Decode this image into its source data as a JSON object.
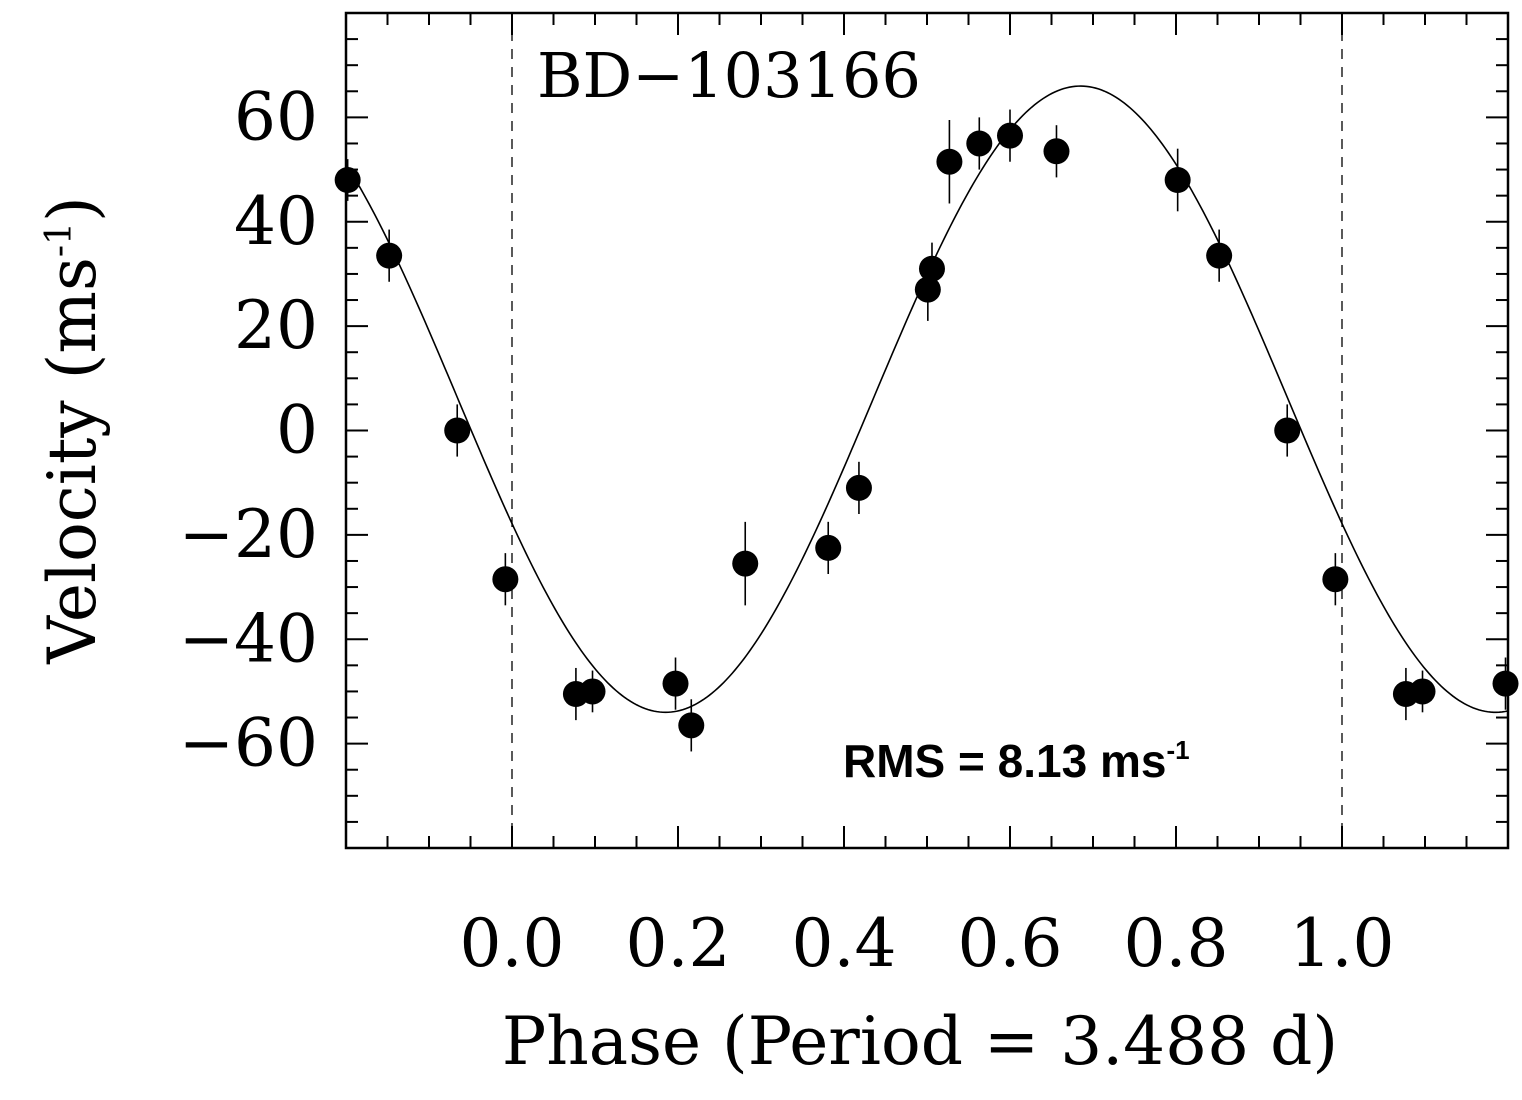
{
  "chart_data": {
    "type": "scatter",
    "title": "BD−103166",
    "xlabel": "Phase (Period = 3.488 d)",
    "ylabel_main": "Velocity (ms",
    "ylabel_sup": "-1",
    "ylabel_close": ")",
    "annotation_main": "RMS = 8.13 ms",
    "annotation_sup": "-1",
    "xlim": [
      -0.2,
      1.2
    ],
    "ylim": [
      -80,
      80
    ],
    "xticks": [
      {
        "value": 0.0,
        "label": "0.0"
      },
      {
        "value": 0.2,
        "label": "0.2"
      },
      {
        "value": 0.4,
        "label": "0.4"
      },
      {
        "value": 0.6,
        "label": "0.6"
      },
      {
        "value": 0.8,
        "label": "0.8"
      },
      {
        "value": 1.0,
        "label": "1.0"
      }
    ],
    "yticks": [
      {
        "value": 60,
        "label": "60"
      },
      {
        "value": 40,
        "label": "40"
      },
      {
        "value": 20,
        "label": "20"
      },
      {
        "value": 0,
        "label": "0"
      },
      {
        "value": -20,
        "label": "−20"
      },
      {
        "value": -40,
        "label": "−40"
      },
      {
        "value": -60,
        "label": "−60"
      }
    ],
    "x_minor_step": 0.05,
    "y_minor_step": 5,
    "dashed_lines_x": [
      0.0,
      1.0
    ],
    "fit_model": {
      "type": "sine",
      "amplitude": 60,
      "offset": 6,
      "period_phase": 1.0,
      "phase_shift": 0.435
    },
    "points": [
      {
        "x": -0.198,
        "y": 48,
        "err": 4
      },
      {
        "x": -0.148,
        "y": 33.5,
        "err": 5
      },
      {
        "x": -0.066,
        "y": 0,
        "err": 5
      },
      {
        "x": -0.008,
        "y": -28.5,
        "err": 5
      },
      {
        "x": 0.077,
        "y": -50.5,
        "err": 5
      },
      {
        "x": 0.097,
        "y": -50,
        "err": 4
      },
      {
        "x": 0.197,
        "y": -48.5,
        "err": 5
      },
      {
        "x": 0.216,
        "y": -56.5,
        "err": 5
      },
      {
        "x": 0.281,
        "y": -25.5,
        "err": 8
      },
      {
        "x": 0.381,
        "y": -22.5,
        "err": 5
      },
      {
        "x": 0.418,
        "y": -11,
        "err": 5
      },
      {
        "x": 0.501,
        "y": 27,
        "err": 6
      },
      {
        "x": 0.506,
        "y": 31,
        "err": 5
      },
      {
        "x": 0.527,
        "y": 51.5,
        "err": 8
      },
      {
        "x": 0.563,
        "y": 55,
        "err": 5
      },
      {
        "x": 0.6,
        "y": 56.5,
        "err": 5
      },
      {
        "x": 0.656,
        "y": 53.5,
        "err": 5
      },
      {
        "x": 0.802,
        "y": 48,
        "err": 6
      },
      {
        "x": 0.852,
        "y": 33.5,
        "err": 5
      },
      {
        "x": 0.934,
        "y": 0,
        "err": 5
      },
      {
        "x": 0.992,
        "y": -28.5,
        "err": 5
      },
      {
        "x": 1.077,
        "y": -50.5,
        "err": 5
      },
      {
        "x": 1.097,
        "y": -50,
        "err": 4
      },
      {
        "x": 1.197,
        "y": -48.5,
        "err": 5
      }
    ]
  }
}
